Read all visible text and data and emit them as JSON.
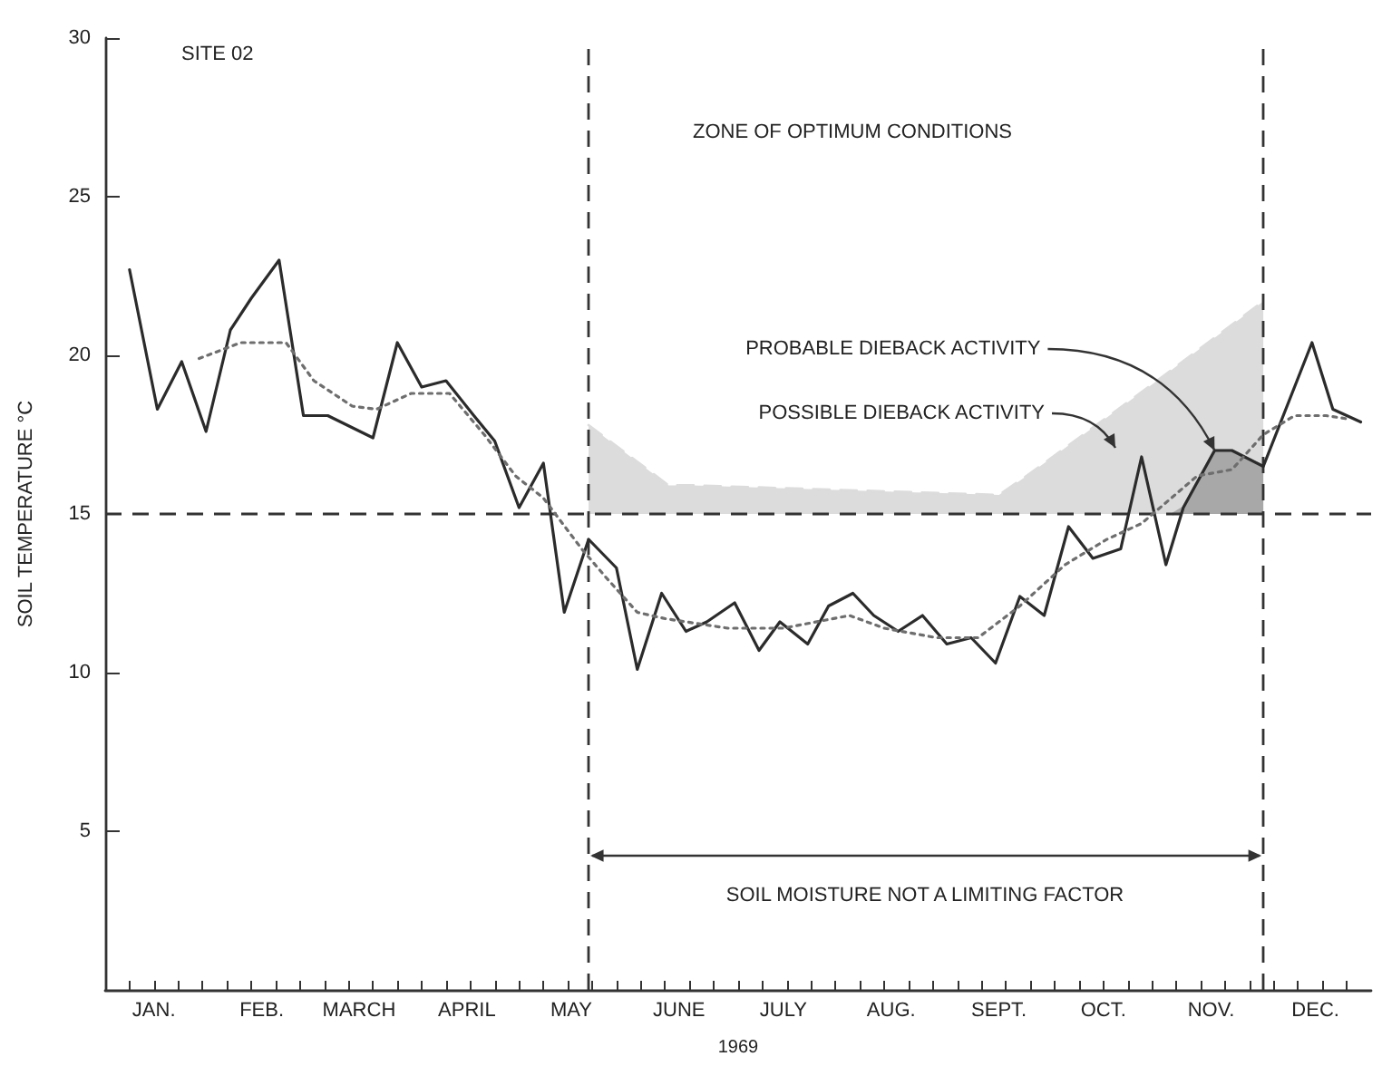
{
  "chart_data": {
    "type": "line",
    "ylabel": "SOIL TEMPERATURE °C",
    "xlabel": "1969",
    "annotations": [
      "SITE 02",
      "ZONE OF OPTIMUM CONDITIONS",
      "SOIL MOISTURE NOT A LIMITING FACTOR",
      "POSSIBLE DIEBACK ACTIVITY",
      {
        "text": "PROBABLE DIEBACK ACTIVITY",
        "x": "1969-11-16",
        "y": 17.0
      }
    ],
    "series": [
      {
        "type": "line",
        "color": "#2b2b2b",
        "line_style": "solid",
        "x": [
          "1969-01-08",
          "1969-01-16",
          "1969-01-23",
          "1969-01-30",
          "1969-02-06",
          "1969-02-12",
          "1969-02-20",
          "1969-02-27",
          "1969-03-06",
          "1969-03-19",
          "1969-03-26",
          "1969-04-02",
          "1969-04-09",
          "1969-04-17",
          "1969-04-23",
          "1969-04-30",
          "1969-05-07",
          "1969-05-13",
          "1969-05-20",
          "1969-05-28",
          "1969-06-03",
          "1969-06-10",
          "1969-06-17",
          "1969-06-23",
          "1969-07-01",
          "1969-07-08",
          "1969-07-14",
          "1969-07-22",
          "1969-07-28",
          "1969-08-04",
          "1969-08-10",
          "1969-08-17",
          "1969-08-24",
          "1969-08-31",
          "1969-09-07",
          "1969-09-14",
          "1969-09-21",
          "1969-09-28",
          "1969-10-05",
          "1969-10-12",
          "1969-10-20",
          "1969-10-26",
          "1969-11-02",
          "1969-11-07",
          "1969-11-16",
          "1969-11-21",
          "1969-11-30",
          "1969-12-14",
          "1969-12-20",
          "1969-12-28"
        ],
        "values": [
          22.7,
          18.3,
          19.8,
          17.6,
          20.8,
          21.8,
          23.0,
          18.1,
          18.1,
          17.4,
          20.4,
          19.0,
          19.2,
          18.1,
          17.3,
          15.2,
          16.6,
          11.9,
          14.2,
          13.3,
          10.1,
          12.5,
          11.3,
          11.6,
          12.2,
          10.7,
          11.6,
          10.9,
          12.1,
          12.5,
          11.8,
          11.3,
          11.8,
          10.9,
          11.1,
          10.3,
          12.4,
          11.8,
          14.6,
          13.6,
          13.9,
          16.8,
          13.4,
          15.2,
          17.0,
          17.0,
          16.5,
          20.4,
          18.3,
          17.9
        ]
      },
      {
        "type": "line",
        "color": "#6e6e6e",
        "line_style": "dotted",
        "x": [
          "1969-01-28",
          "1969-02-09",
          "1969-02-22",
          "1969-03-02",
          "1969-03-13",
          "1969-03-20",
          "1969-03-30",
          "1969-04-10",
          "1969-04-20",
          "1969-04-29",
          "1969-05-07",
          "1969-05-18",
          "1969-05-25",
          "1969-06-03",
          "1969-06-11",
          "1969-06-29",
          "1969-07-15",
          "1969-08-03",
          "1969-08-13",
          "1969-08-28",
          "1969-09-09",
          "1969-09-21",
          "1969-10-04",
          "1969-10-16",
          "1969-10-26",
          "1969-11-11",
          "1969-11-21",
          "1969-11-30",
          "1969-12-09",
          "1969-12-18",
          "1969-12-24"
        ],
        "values": [
          19.9,
          20.4,
          20.4,
          19.2,
          18.4,
          18.3,
          18.8,
          18.8,
          17.5,
          16.2,
          15.5,
          13.9,
          13.0,
          11.9,
          11.7,
          11.4,
          11.4,
          11.8,
          11.4,
          11.1,
          11.1,
          12.1,
          13.4,
          14.2,
          14.7,
          16.2,
          16.4,
          17.5,
          18.1,
          18.1,
          18.0
        ]
      },
      {
        "type": "area",
        "color": "#dcdcdc",
        "line_style": "dashed",
        "x": [
          "1969-05-20",
          "1969-06-12",
          "1969-06-19",
          "1969-09-15",
          "1969-09-23",
          "1969-10-28",
          "1969-11-30"
        ],
        "values": [
          17.8,
          15.9,
          15.9,
          15.6,
          16.2,
          19.0,
          21.7
        ]
      },
      {
        "type": "area",
        "color": "#a8a8a8",
        "x": [
          "1969-11-04",
          "1969-11-07",
          "1969-11-16",
          "1969-11-21",
          "1969-11-30"
        ],
        "values": [
          15.0,
          15.2,
          17.0,
          17.0,
          16.5
        ]
      }
    ],
    "ref_lines": [
      {
        "axis": "y",
        "value": 15,
        "line_style": "dashed"
      },
      {
        "axis": "x",
        "value": "1969-05-20",
        "line_style": "dashed"
      },
      {
        "axis": "x",
        "value": "1969-11-30",
        "line_style": "dashed"
      }
    ],
    "xlim": [
      "1969-01-01",
      "1969-12-31"
    ],
    "xticks": [
      {
        "value": "1969-01-15",
        "label": "JAN."
      },
      {
        "value": "1969-02-15",
        "label": "FEB."
      },
      {
        "value": "1969-03-15",
        "label": "MARCH"
      },
      {
        "value": "1969-04-15",
        "label": "APRIL"
      },
      {
        "value": "1969-05-15",
        "label": "MAY"
      },
      {
        "value": "1969-06-15",
        "label": "JUNE"
      },
      {
        "value": "1969-07-15",
        "label": "JULY"
      },
      {
        "value": "1969-08-15",
        "label": "AUG."
      },
      {
        "value": "1969-09-15",
        "label": "SEPT."
      },
      {
        "value": "1969-10-15",
        "label": "OCT."
      },
      {
        "value": "1969-11-15",
        "label": "NOV."
      },
      {
        "value": "1969-12-15",
        "label": "DEC."
      },
      {
        "value": "1969-01-08",
        "label": null
      },
      {
        "value": "1969-01-15",
        "label": null
      },
      {
        "value": "1969-01-22",
        "label": null
      },
      {
        "value": "1969-01-29",
        "label": null
      },
      {
        "value": "1969-02-05",
        "label": null
      },
      {
        "value": "1969-02-12",
        "label": null
      },
      {
        "value": "1969-02-19",
        "label": null
      },
      {
        "value": "1969-02-26",
        "label": null
      },
      {
        "value": "1969-03-05",
        "label": null
      },
      {
        "value": "1969-03-12",
        "label": null
      },
      {
        "value": "1969-03-19",
        "label": null
      },
      {
        "value": "1969-03-26",
        "label": null
      },
      {
        "value": "1969-04-02",
        "label": null
      },
      {
        "value": "1969-04-09",
        "label": null
      },
      {
        "value": "1969-04-16",
        "label": null
      },
      {
        "value": "1969-04-23",
        "label": null
      },
      {
        "value": "1969-04-30",
        "label": null
      },
      {
        "value": "1969-05-07",
        "label": null
      },
      {
        "value": "1969-05-14",
        "label": null
      },
      {
        "value": "1969-05-21",
        "label": null
      },
      {
        "value": "1969-05-28",
        "label": null
      },
      {
        "value": "1969-06-04",
        "label": null
      },
      {
        "value": "1969-06-11",
        "label": null
      },
      {
        "value": "1969-06-18",
        "label": null
      },
      {
        "value": "1969-06-25",
        "label": null
      },
      {
        "value": "1969-07-02",
        "label": null
      },
      {
        "value": "1969-07-09",
        "label": null
      },
      {
        "value": "1969-07-16",
        "label": null
      },
      {
        "value": "1969-07-23",
        "label": null
      },
      {
        "value": "1969-07-30",
        "label": null
      },
      {
        "value": "1969-08-06",
        "label": null
      },
      {
        "value": "1969-08-13",
        "label": null
      },
      {
        "value": "1969-08-20",
        "label": null
      },
      {
        "value": "1969-08-27",
        "label": null
      },
      {
        "value": "1969-09-03",
        "label": null
      },
      {
        "value": "1969-09-10",
        "label": null
      },
      {
        "value": "1969-09-17",
        "label": null
      },
      {
        "value": "1969-09-24",
        "label": null
      },
      {
        "value": "1969-10-01",
        "label": null
      },
      {
        "value": "1969-10-08",
        "label": null
      },
      {
        "value": "1969-10-15",
        "label": null
      },
      {
        "value": "1969-10-22",
        "label": null
      },
      {
        "value": "1969-10-29",
        "label": null
      },
      {
        "value": "1969-11-05",
        "label": null
      },
      {
        "value": "1969-11-12",
        "label": null
      },
      {
        "value": "1969-11-19",
        "label": null
      },
      {
        "value": "1969-11-26",
        "label": null
      },
      {
        "value": "1969-12-03",
        "label": null
      },
      {
        "value": "1969-12-10",
        "label": null
      },
      {
        "value": "1969-12-17",
        "label": null
      },
      {
        "value": "1969-12-24",
        "label": null
      }
    ],
    "ylim": [
      0,
      30
    ],
    "yticks": [
      5,
      10,
      15,
      20,
      25,
      30
    ],
    "grid": false,
    "marker": "none"
  }
}
